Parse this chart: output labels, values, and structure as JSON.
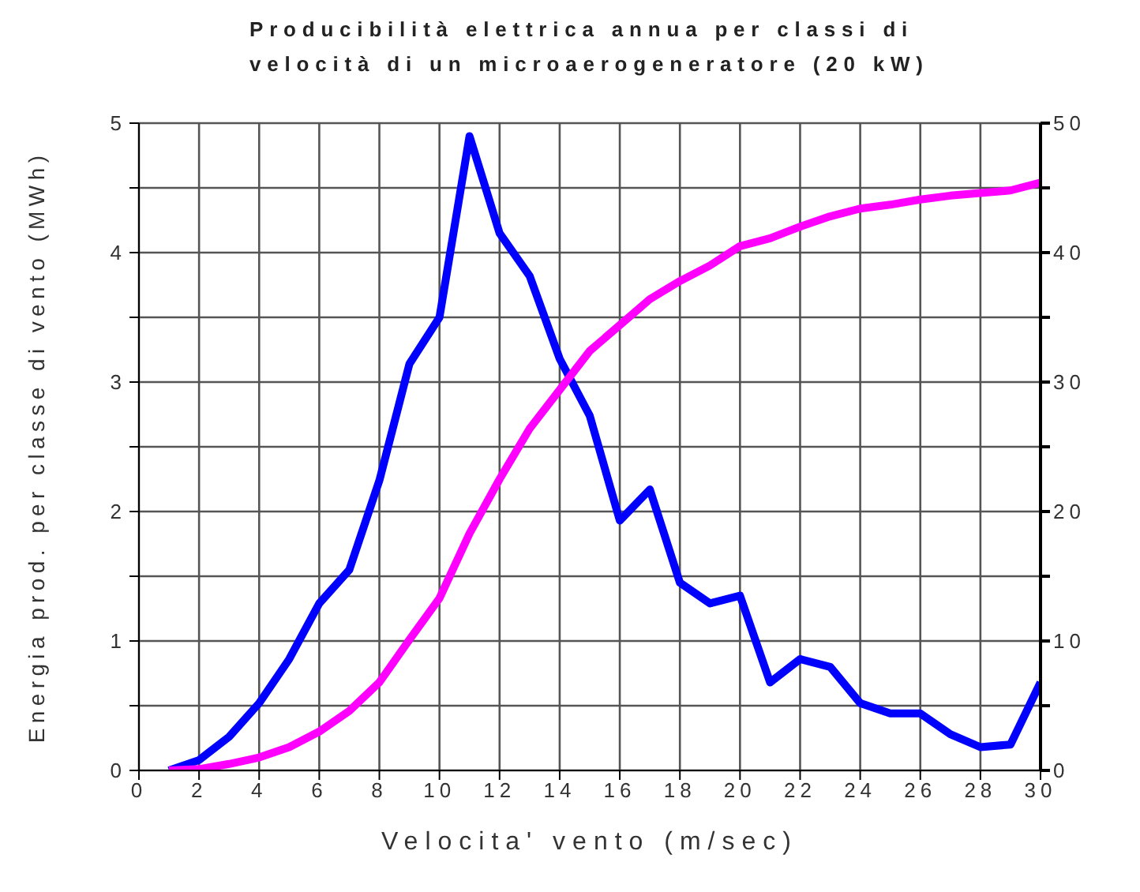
{
  "chart_data": {
    "type": "line",
    "title": "Producibilità elettrica annua per classi di velocità di un microaerogeneratore (20 kW)",
    "xlabel": "Velocita' vento (m/sec)",
    "ylabel": "Energia prod. per classe di vento (MWh)",
    "x": [
      1,
      2,
      3,
      4,
      5,
      6,
      7,
      8,
      9,
      10,
      11,
      12,
      13,
      14,
      15,
      16,
      17,
      18,
      19,
      20,
      21,
      22,
      23,
      24,
      25,
      26,
      27,
      28,
      29,
      30
    ],
    "series": [
      {
        "color": "#0000ff",
        "values": [
          0,
          0.08,
          0.26,
          0.52,
          0.86,
          1.29,
          1.55,
          2.24,
          3.14,
          3.5,
          4.9,
          4.15,
          3.82,
          3.18,
          2.74,
          1.93,
          2.17,
          1.45,
          1.29,
          1.35,
          0.68,
          0.86,
          0.8,
          0.52,
          0.44,
          0.44,
          0.28,
          0.18,
          0.2,
          0.68
        ]
      },
      {
        "color": "#ff00ff",
        "axis": "y2",
        "values": [
          0,
          0.1,
          0.5,
          1,
          1.8,
          3,
          4.6,
          6.8,
          10.1,
          13.3,
          18.3,
          22.5,
          26.4,
          29.4,
          32.4,
          34.4,
          36.4,
          37.8,
          39,
          40.5,
          41.1,
          42,
          42.8,
          43.4,
          43.7,
          44.1,
          44.4,
          44.6,
          44.8,
          45.4
        ]
      }
    ],
    "xlim": [
      0,
      30
    ],
    "xticks": [
      0,
      2,
      4,
      6,
      8,
      10,
      12,
      14,
      16,
      18,
      20,
      22,
      24,
      26,
      28,
      30
    ],
    "ylim": [
      0,
      5
    ],
    "yticks": [
      0,
      {
        "value": 0.5,
        "label": null
      },
      1,
      {
        "value": 1.5,
        "label": null
      },
      2,
      {
        "value": 2.5,
        "label": null
      },
      3,
      {
        "value": 3.5,
        "label": null
      },
      4,
      {
        "value": 4.5,
        "label": null
      },
      5
    ],
    "y2lim": [
      0,
      50
    ],
    "y2ticks": [
      0,
      {
        "value": 5,
        "label": null
      },
      10,
      {
        "value": 15,
        "label": null
      },
      20,
      {
        "value": 25,
        "label": null
      },
      30,
      {
        "value": 35,
        "label": null
      },
      40,
      {
        "value": 45,
        "label": null
      },
      50
    ],
    "grid": true,
    "legend": false,
    "marker": "none",
    "line_style": "solid"
  }
}
